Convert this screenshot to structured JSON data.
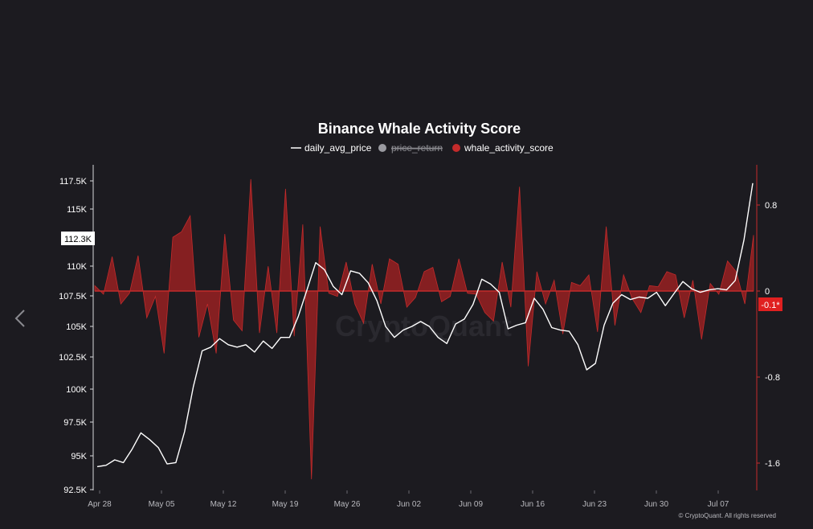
{
  "chart_data": {
    "type": "line+area",
    "title": "Binance Whale Activity Score",
    "legend": [
      {
        "name": "daily_avg_price",
        "color": "#ffffff",
        "marker": "line",
        "enabled": true
      },
      {
        "name": "price_return",
        "color": "#9a9aa0",
        "marker": "dot",
        "enabled": false
      },
      {
        "name": "whale_activity_score",
        "color": "#c42b2b",
        "marker": "dot",
        "enabled": true
      }
    ],
    "x_tick_labels": [
      "Apr 28",
      "May 05",
      "May 12",
      "May 19",
      "May 26",
      "Jun 02",
      "Jun 09",
      "Jun 16",
      "Jun 23",
      "Jun 30",
      "Jul 07"
    ],
    "x_start_date": "2025-04-28",
    "x_end_date": "2025-07-14",
    "y_left": {
      "tick_labels": [
        "92.5K",
        "95K",
        "97.5K",
        "100K",
        "102.5K",
        "105K",
        "107.5K",
        "110K",
        "115K",
        "117.5K"
      ],
      "tick_values": [
        92500,
        95000,
        97500,
        100000,
        102500,
        105000,
        107500,
        110000,
        115000,
        117500
      ],
      "range": [
        92500,
        117500
      ]
    },
    "y_right": {
      "tick_labels": [
        "0.8",
        "0",
        "-0.8",
        "-1.6"
      ],
      "tick_values": [
        0.8,
        0,
        -0.8,
        -1.6
      ],
      "range": [
        -1.75,
        1.05
      ]
    },
    "price_badge": "112.3K",
    "score_badge": "-0.1*",
    "series": [
      {
        "name": "daily_avg_price",
        "axis": "left",
        "values": [
          94200,
          94300,
          94700,
          94500,
          95500,
          96700,
          96200,
          95600,
          94400,
          94500,
          96800,
          100200,
          103000,
          103300,
          104000,
          103500,
          103300,
          103500,
          102900,
          103800,
          103200,
          104100,
          104100,
          105800,
          108000,
          110300,
          109700,
          108300,
          107600,
          109600,
          109400,
          108600,
          107100,
          105000,
          104100,
          104700,
          105000,
          105400,
          105000,
          104100,
          103600,
          105200,
          105600,
          106800,
          108900,
          108500,
          107800,
          104800,
          105100,
          105300,
          107300,
          106400,
          104900,
          104700,
          104600,
          103500,
          101500,
          102000,
          105100,
          106900,
          107600,
          107200,
          107400,
          107300,
          107800,
          106700,
          107700,
          108700,
          108100,
          107800,
          108000,
          108100,
          108000,
          108800,
          112300,
          117300
        ]
      },
      {
        "name": "whale_activity_score",
        "axis": "right",
        "values": [
          0.05,
          -0.03,
          0.32,
          -0.12,
          -0.02,
          0.33,
          -0.25,
          -0.05,
          -0.58,
          0.5,
          0.55,
          0.7,
          -0.43,
          -0.12,
          -0.58,
          0.53,
          -0.27,
          -0.37,
          1.04,
          -0.39,
          0.23,
          -0.39,
          0.95,
          -0.42,
          0.62,
          -1.75,
          0.6,
          -0.02,
          -0.05,
          0.27,
          -0.12,
          -0.3,
          0.25,
          -0.12,
          0.3,
          0.25,
          -0.15,
          -0.06,
          0.18,
          0.22,
          -0.1,
          -0.05,
          0.3,
          -0.02,
          -0.03,
          -0.2,
          -0.28,
          0.27,
          -0.15,
          0.97,
          -0.7,
          0.18,
          -0.12,
          0.1,
          -0.4,
          0.08,
          0.05,
          0.15,
          -0.38,
          0.6,
          -0.32,
          0.15,
          -0.07,
          -0.2,
          0.05,
          0.04,
          0.18,
          0.15,
          -0.25,
          0.1,
          -0.45,
          0.07,
          -0.03,
          0.28,
          0.18,
          -0.12,
          0.52
        ]
      }
    ],
    "watermark": "CryptoQuant",
    "credit": "© CryptoQuant. All rights reserved"
  },
  "ui": {
    "prev_icon": "chevron-left-icon"
  }
}
